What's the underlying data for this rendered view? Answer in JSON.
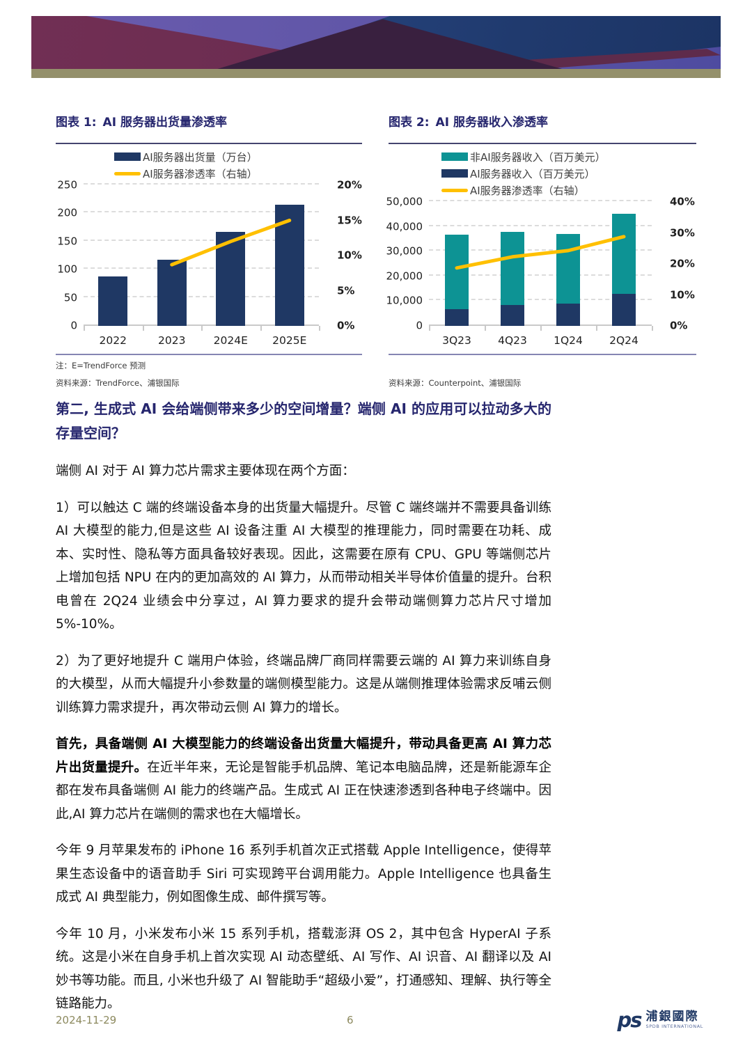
{
  "colors": {
    "brand_navy": "#1F3864",
    "teal": "#0D9394",
    "gold": "#FFC000",
    "heading_navy": "#26266E",
    "olive_strip": "#94906B"
  },
  "figures": [
    {
      "title_label": "图表 1:",
      "title": "AI 服务器出货量渗透率",
      "note": "注：E=TrendForce 预测",
      "source": "资料来源：TrendForce、浦银国际"
    },
    {
      "title_label": "图表 2:",
      "title": "AI 服务器收入渗透率",
      "note": "",
      "source": "资料来源：Counterpoint、浦银国际"
    }
  ],
  "chart_data": [
    {
      "type": "bar",
      "subtype": "bar+line-dual-axis",
      "categories": [
        "2022",
        "2023",
        "2024E",
        "2025E"
      ],
      "series": [
        {
          "name": "AI服务器出货量（万台）",
          "type": "bar",
          "stack": 0,
          "axis": "left",
          "color": "#1F3864",
          "values": [
            88,
            118,
            167,
            215
          ]
        },
        {
          "name": "AI服务器渗透率（右轴）",
          "type": "line",
          "axis": "right",
          "color": "#FFC000",
          "values": [
            null,
            8.7,
            12,
            15
          ]
        }
      ],
      "left_axis": {
        "min": 0,
        "max": 250,
        "labels": [
          "0",
          "50",
          "100",
          "150",
          "200",
          "250"
        ]
      },
      "right_axis": {
        "min": 0,
        "max": 20,
        "labels": [
          "0%",
          "5%",
          "10%",
          "15%",
          "20%"
        ]
      },
      "grid": "horizontal-dashed",
      "legend_position": "top"
    },
    {
      "type": "bar",
      "subtype": "stacked-bar+line-dual-axis",
      "categories": [
        "3Q23",
        "4Q23",
        "1Q24",
        "2Q24"
      ],
      "series": [
        {
          "name": "非AI服务器收入（百万美元）",
          "type": "bar",
          "stack": 1,
          "axis": "left",
          "color": "#0D9394",
          "values": [
            30000,
            29500,
            28200,
            32300
          ]
        },
        {
          "name": "AI服务器收入（百万美元）",
          "type": "bar",
          "stack": 0,
          "axis": "left",
          "color": "#1F3864",
          "values": [
            6800,
            8400,
            9000,
            12900
          ]
        },
        {
          "name": "AI服务器渗透率（右轴）",
          "type": "line",
          "axis": "right",
          "color": "#FFC000",
          "values": [
            18.7,
            22.3,
            24.3,
            28.8
          ]
        }
      ],
      "left_axis": {
        "min": 0,
        "max": 50000,
        "labels": [
          "0",
          "10,000",
          "20,000",
          "30,000",
          "40,000",
          "50,000"
        ]
      },
      "right_axis": {
        "min": 0,
        "max": 40,
        "labels": [
          "0%",
          "10%",
          "20%",
          "30%",
          "40%"
        ]
      },
      "grid": "horizontal-dashed",
      "legend_position": "top"
    }
  ],
  "article": {
    "heading": "第二, 生成式 AI 会给端侧带来多少的空间增量？端侧 AI 的应用可以拉动多大的存量空间？",
    "paragraphs": [
      {
        "bold": "",
        "text": "端侧 AI 对于 AI 算力芯片需求主要体现在两个方面："
      },
      {
        "bold": "",
        "text": "1）可以触达 C 端的终端设备本身的出货量大幅提升。尽管 C 端终端并不需要具备训练 AI 大模型的能力,但是这些 AI 设备注重 AI 大模型的推理能力，同时需要在功耗、成本、实时性、隐私等方面具备较好表现。因此，这需要在原有 CPU、GPU 等端侧芯片上增加包括 NPU 在内的更加高效的 AI 算力，从而带动相关半导体价值量的提升。台积电曾在 2Q24 业绩会中分享过，AI 算力要求的提升会带动端侧算力芯片尺寸增加 5%-10%。"
      },
      {
        "bold": "",
        "text": "2）为了更好地提升 C 端用户体验，终端品牌厂商同样需要云端的 AI 算力来训练自身的大模型，从而大幅提升小参数量的端侧模型能力。这是从端侧推理体验需求反哺云侧训练算力需求提升，再次带动云侧 AI 算力的增长。"
      },
      {
        "bold": "首先，具备端侧 AI 大模型能力的终端设备出货量大幅提升，带动具备更高 AI 算力芯片出货量提升。",
        "text": "在近半年来，无论是智能手机品牌、笔记本电脑品牌，还是新能源车企都在发布具备端侧 AI 能力的终端产品。生成式 AI 正在快速渗透到各种电子终端中。因此,AI 算力芯片在端侧的需求也在大幅增长。"
      },
      {
        "bold": "",
        "text": "今年 9 月苹果发布的 iPhone 16 系列手机首次正式搭载 Apple Intelligence，使得苹果生态设备中的语音助手 Siri 可实现跨平台调用能力。Apple Intelligence 也具备生成式 AI 典型能力，例如图像生成、邮件撰写等。"
      },
      {
        "bold": "",
        "text": "今年 10 月，小米发布小米 15 系列手机，搭载澎湃 OS 2，其中包含 HyperAI 子系统。这是小米在自身手机上首次实现 AI 动态壁纸、AI 写作、AI 识音、AI 翻译以及 AI 妙书等功能。而且, 小米也升级了 AI 智能助手“超级小爱”，打通感知、理解、执行等全链路能力。"
      }
    ]
  },
  "footer": {
    "date": "2024-11-29",
    "page_number": "6",
    "logo_mark": "ps",
    "logo_zh": "浦銀國際",
    "logo_en": "SPDB INTERNATIONAL"
  }
}
